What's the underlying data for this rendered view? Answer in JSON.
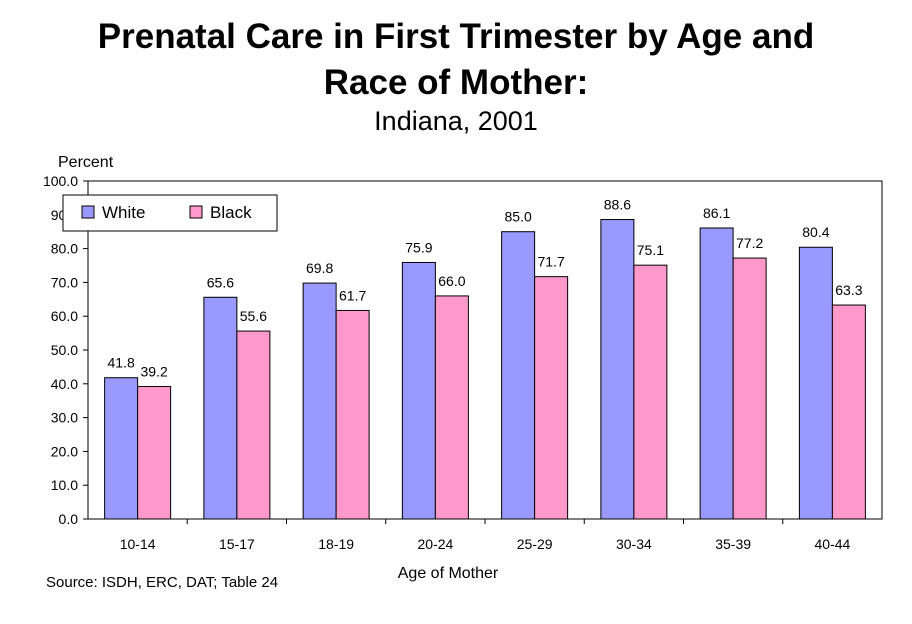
{
  "title_line1": "Prenatal Care in First Trimester by Age and",
  "title_line2": "Race of Mother:",
  "subtitle": "Indiana, 2001",
  "source": "Source:  ISDH, ERC, DAT; Table 24",
  "colors": {
    "white": "#9999ff",
    "black": "#ff99cc"
  },
  "chart_data": {
    "type": "bar",
    "title": "Prenatal Care in First Trimester by Age and Race of Mother:",
    "subtitle": "Indiana, 2001",
    "xlabel": "Age of Mother",
    "ylabel": "Percent",
    "ylim": [
      0,
      100
    ],
    "yticks": [
      "0.0",
      "10.0",
      "20.0",
      "30.0",
      "40.0",
      "50.0",
      "60.0",
      "70.0",
      "80.0",
      "90.0",
      "100.0"
    ],
    "categories": [
      "10-14",
      "15-17",
      "18-19",
      "20-24",
      "25-29",
      "30-34",
      "35-39",
      "40-44"
    ],
    "series": [
      {
        "name": "White",
        "values": [
          41.8,
          65.6,
          69.8,
          75.9,
          85.0,
          88.6,
          86.1,
          80.4
        ],
        "labels": [
          "41.8",
          "65.6",
          "69.8",
          "75.9",
          "85.0",
          "88.6",
          "86.1",
          "80.4"
        ]
      },
      {
        "name": "Black",
        "values": [
          39.2,
          55.6,
          61.7,
          66.0,
          71.7,
          75.1,
          77.2,
          63.3
        ],
        "labels": [
          "39.2",
          "55.6",
          "61.7",
          "66.0",
          "71.7",
          "75.1",
          "77.2",
          "63.3"
        ]
      }
    ],
    "legend": "top-left",
    "grid": false
  }
}
